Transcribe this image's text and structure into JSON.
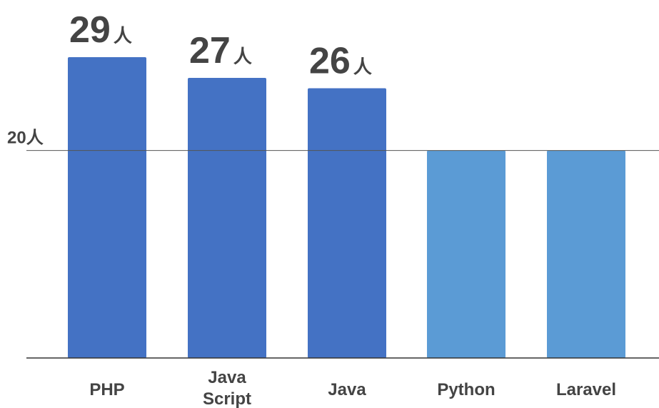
{
  "chart_data": {
    "type": "bar",
    "categories": [
      [
        "PHP"
      ],
      [
        "Java",
        "Script"
      ],
      [
        "Java"
      ],
      [
        "Python"
      ],
      [
        "Laravel"
      ]
    ],
    "values": [
      29,
      27,
      26,
      20,
      20
    ],
    "data_labels": [
      {
        "number": "29",
        "unit": "人"
      },
      {
        "number": "27",
        "unit": "人"
      },
      {
        "number": "26",
        "unit": "人"
      },
      null,
      null
    ],
    "reference_line": {
      "value": 20,
      "label": "20人"
    },
    "ylim": [
      0,
      29
    ],
    "grid": false,
    "colors": {
      "highlight": "#4472C4",
      "normal": "#5B9BD5",
      "text": "#444444",
      "axis": "#333333",
      "reference_line": "#555555"
    },
    "highlighted_bars": [
      0,
      1,
      2
    ]
  }
}
